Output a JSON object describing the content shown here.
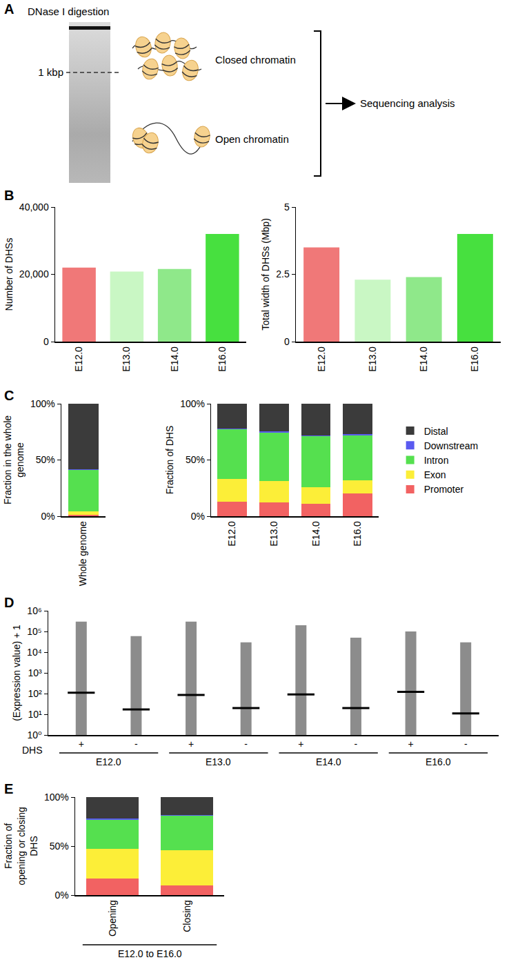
{
  "diagram": {
    "panel": "A",
    "title": "DNase I digestion",
    "marker": "1 kbp",
    "states": [
      "Closed chromatin",
      "Open chromatin"
    ],
    "output": "Sequencing analysis"
  },
  "chart_data": [
    {
      "panel": "B",
      "type": "bar",
      "categories": [
        "E12.0",
        "E13.0",
        "E14.0",
        "E16.0"
      ],
      "values": [
        22000,
        20800,
        21600,
        32000
      ],
      "colors": [
        "#f07878",
        "#c9f7c4",
        "#8fe88a",
        "#47e03f"
      ],
      "ylabel": "Number of DHSs",
      "ylim": [
        0,
        40000
      ],
      "yticks": [
        0,
        {
          "value": 20000,
          "label": "20,000"
        },
        {
          "value": 40000,
          "label": "40,000"
        }
      ]
    },
    {
      "type": "bar",
      "categories": [
        "E12.0",
        "E13.0",
        "E14.0",
        "E16.0"
      ],
      "values": [
        3.5,
        2.3,
        2.4,
        4.0
      ],
      "colors": [
        "#f07878",
        "#c9f7c4",
        "#8fe88a",
        "#47e03f"
      ],
      "ylabel": "Total width of DHSs (Mbp)",
      "ylim": [
        0,
        5
      ],
      "yticks": [
        0,
        2.5,
        5
      ]
    },
    {
      "panel": "C",
      "type": "bar",
      "stacked": true,
      "legend": "right",
      "subplots": [
        {
          "ylabel": "Fraction in the whole genome",
          "categories": [
            "Whole genome"
          ]
        },
        {
          "ylabel": "Fraction of DHS",
          "categories": [
            "E12.0",
            "E13.0",
            "E14.0",
            "E16.0"
          ]
        }
      ],
      "series": [
        {
          "name": "Promoter",
          "color": "#f26262",
          "values": [
            1,
            13,
            12.5,
            11,
            20
          ]
        },
        {
          "name": "Exon",
          "color": "#fcee38",
          "values": [
            3,
            20,
            18.5,
            15,
            12
          ]
        },
        {
          "name": "Intron",
          "color": "#55e04f",
          "values": [
            37,
            44,
            43.5,
            45,
            40
          ]
        },
        {
          "name": "Downstream",
          "color": "#5a5af0",
          "values": [
            0.5,
            1,
            1,
            1,
            1
          ]
        },
        {
          "name": "Distal",
          "color": "#3b3b3b",
          "values": [
            58.5,
            22,
            24.5,
            28,
            27
          ]
        }
      ],
      "ylim": [
        0,
        100
      ],
      "yticks": [
        {
          "value": 0,
          "label": "0%"
        },
        {
          "value": 50,
          "label": "50%"
        },
        {
          "value": 100,
          "label": "100%"
        }
      ]
    },
    {
      "panel": "D",
      "type": "scatter",
      "log": "y",
      "xlabel": "DHS",
      "categories": [
        "+",
        "-",
        "+",
        "-",
        "+",
        "-",
        "+",
        "-"
      ],
      "groups": [
        "E12.0",
        "E13.0",
        "E14.0",
        "E16.0"
      ],
      "min": [
        1,
        1,
        1,
        1,
        1,
        1,
        1,
        1
      ],
      "max": [
        300000,
        60000,
        300000,
        30000,
        200000,
        50000,
        100000,
        30000
      ],
      "median": [
        110,
        17,
        85,
        20,
        90,
        20,
        120,
        11
      ],
      "color": "#8c8c8c",
      "ylabel": "(Expression value) + 1",
      "ylim": [
        1,
        1000000
      ],
      "yticks": [
        {
          "value": 1,
          "label": "10⁰"
        },
        {
          "value": 10,
          "label": "10¹"
        },
        {
          "value": 100,
          "label": "10²"
        },
        {
          "value": 1000,
          "label": "10³"
        },
        {
          "value": 10000,
          "label": "10⁴"
        },
        {
          "value": 100000,
          "label": "10⁵"
        },
        {
          "value": 1000000,
          "label": "10⁶"
        }
      ]
    },
    {
      "panel": "E",
      "type": "bar",
      "stacked": true,
      "categories": [
        "Opening",
        "Closing"
      ],
      "groups": [
        "E12.0 to E16.0"
      ],
      "series": [
        {
          "name": "Promoter",
          "color": "#f26262",
          "values": [
            17,
            10
          ]
        },
        {
          "name": "Exon",
          "color": "#fcee38",
          "values": [
            30,
            36
          ]
        },
        {
          "name": "Intron",
          "color": "#55e04f",
          "values": [
            30,
            35
          ]
        },
        {
          "name": "Downstream",
          "color": "#5a5af0",
          "values": [
            1,
            1
          ]
        },
        {
          "name": "Distal",
          "color": "#3b3b3b",
          "values": [
            22,
            18
          ]
        }
      ],
      "ylabel": "Fraction of opening or closing DHS",
      "ylim": [
        0,
        100
      ],
      "yticks": [
        {
          "value": 0,
          "label": "0%"
        },
        {
          "value": 50,
          "label": "50%"
        },
        {
          "value": 100,
          "label": "100%"
        }
      ]
    }
  ]
}
